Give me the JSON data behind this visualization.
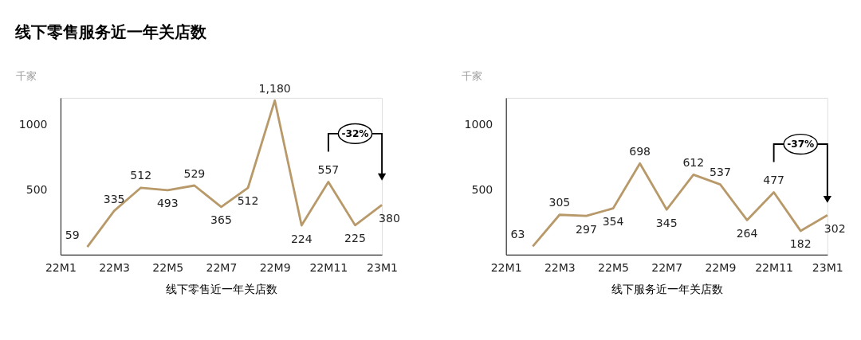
{
  "chart_data": [
    {
      "type": "line",
      "title": "线下零售服务近一年关店数",
      "ylabel": "千家",
      "xlabel": "线下零售近一年关店数",
      "categories": [
        "22M1",
        null,
        "22M3",
        null,
        "22M5",
        null,
        "22M7",
        null,
        "22M9",
        null,
        "22M11",
        null,
        "23M1"
      ],
      "series": [
        {
          "color": "#b8996a",
          "values": [
            null,
            59,
            335,
            512,
            493,
            529,
            365,
            512,
            1180,
            224,
            557,
            225,
            380
          ],
          "value_labels": [
            null,
            "59",
            "335",
            "512",
            "493",
            "529",
            "365",
            "512",
            "1,180",
            "224",
            "557",
            "225",
            "380"
          ]
        }
      ],
      "ylim": [
        0,
        1200
      ],
      "yticks": [
        500,
        1000
      ],
      "grid": false,
      "marker": "none",
      "line_style": "solid",
      "annotations": [
        "-32%"
      ]
    },
    {
      "type": "line",
      "ylabel": "千家",
      "xlabel": "线下服务近一年关店数",
      "categories": [
        "22M1",
        null,
        "22M3",
        null,
        "22M5",
        null,
        "22M7",
        null,
        "22M9",
        null,
        "22M11",
        null,
        "23M1"
      ],
      "series": [
        {
          "color": "#b8996a",
          "values": [
            null,
            63,
            305,
            297,
            354,
            698,
            345,
            612,
            537,
            264,
            477,
            182,
            302
          ],
          "value_labels": [
            null,
            "63",
            "305",
            "297",
            "354",
            "698",
            "345",
            "612",
            "537",
            "264",
            "477",
            "182",
            "302"
          ]
        }
      ],
      "ylim": [
        0,
        1200
      ],
      "yticks": [
        500,
        1000
      ],
      "grid": false,
      "marker": "none",
      "line_style": "solid",
      "annotations": [
        "-37%"
      ]
    }
  ]
}
